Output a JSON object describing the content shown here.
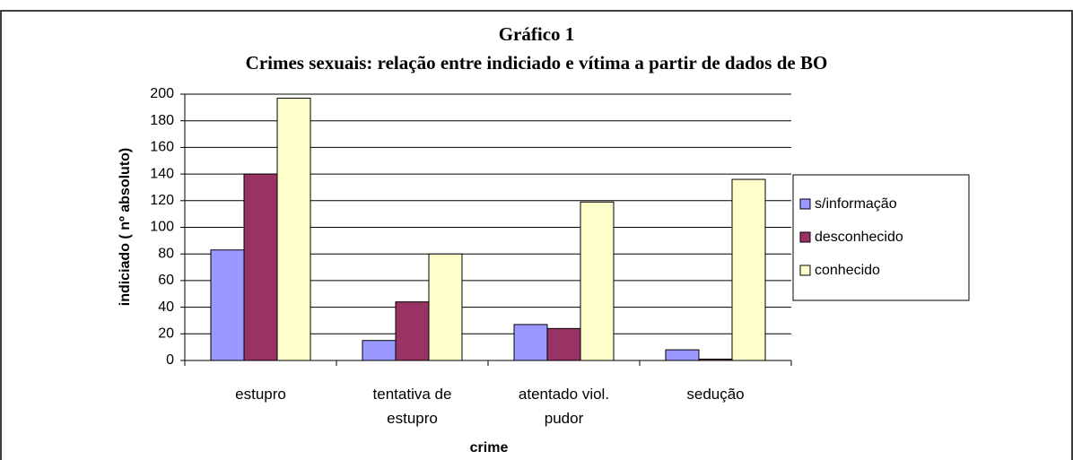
{
  "chart_data": {
    "type": "bar",
    "title": "Gráfico 1",
    "subtitle": "Crimes sexuais: relação entre indiciado e vítima a partir de dados de BO",
    "x_label": "crime",
    "y_label": "indiciado ( nº absoluto)",
    "categories": [
      "estupro",
      "tentativa de estupro",
      "atentado viol. pudor",
      "sedução"
    ],
    "series": [
      {
        "name": "s/informação",
        "color": "#9999ff",
        "values": [
          83,
          15,
          27,
          8
        ]
      },
      {
        "name": "desconhecido",
        "color": "#993366",
        "values": [
          140,
          44,
          24,
          1
        ]
      },
      {
        "name": "conhecido",
        "color": "#ffffcc",
        "values": [
          197,
          80,
          119,
          136
        ]
      }
    ],
    "ylim": [
      0,
      200
    ],
    "yticks": [
      0,
      20,
      40,
      60,
      80,
      100,
      120,
      140,
      160,
      180,
      200
    ],
    "grid": true,
    "legend": "right"
  }
}
